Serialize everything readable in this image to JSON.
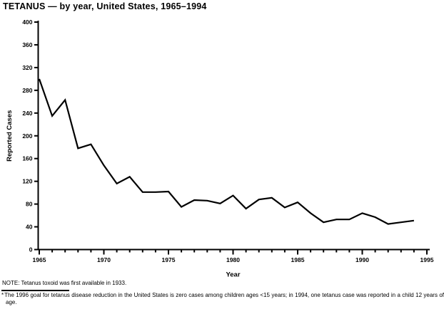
{
  "chart_data": {
    "type": "line",
    "title": "TETANUS — by year, United States, 1965–1994",
    "xlabel": "Year",
    "ylabel": "Reported Cases",
    "x": [
      1965,
      1966,
      1967,
      1968,
      1969,
      1970,
      1971,
      1972,
      1973,
      1974,
      1975,
      1976,
      1977,
      1978,
      1979,
      1980,
      1981,
      1982,
      1983,
      1984,
      1985,
      1986,
      1987,
      1988,
      1989,
      1990,
      1991,
      1992,
      1993,
      1994
    ],
    "values": [
      300,
      235,
      263,
      178,
      185,
      148,
      116,
      128,
      101,
      101,
      102,
      75,
      87,
      86,
      81,
      95,
      72,
      88,
      91,
      74,
      83,
      64,
      48,
      53,
      53,
      64,
      57,
      45,
      48,
      51
    ],
    "xlim": [
      1965,
      1995
    ],
    "ylim": [
      0,
      400
    ],
    "y_tick_interval": 40,
    "x_major_tick_interval": 5,
    "x_minor_tick_interval": 1,
    "x_major_tick_labels": [
      "1965",
      "1970",
      "1975",
      "1980",
      "1985",
      "1990",
      "1995"
    ],
    "grid": false,
    "legend": "none",
    "line_color": "#000000",
    "background_color": "#ffffff",
    "text_color": "#000000"
  },
  "note": "NOTE: Tetanus toxoid was first available in 1933.",
  "footnote": {
    "marker": "*",
    "text": "The 1996 goal for tetanus disease reduction in the United States is zero cases among children ages <15 years; in 1994, one tetanus case was reported in a child 12 years of age."
  }
}
